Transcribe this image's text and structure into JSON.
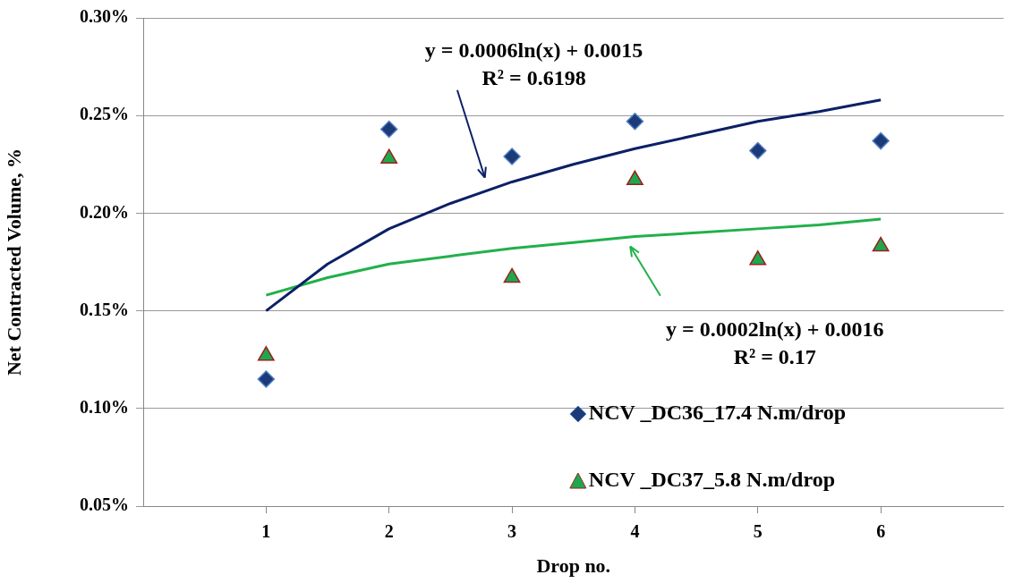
{
  "chart_data": {
    "type": "scatter",
    "xlabel": "Drop no.",
    "ylabel": "Net Contracted Volume, %",
    "x": [
      1,
      2,
      3,
      4,
      5,
      6
    ],
    "xlim": [
      0,
      7
    ],
    "xticks": [
      1,
      2,
      3,
      4,
      5,
      6
    ],
    "ylim": [
      0.05,
      0.3
    ],
    "yticks": [
      {
        "value": 0.05,
        "label": "0.05%"
      },
      {
        "value": 0.1,
        "label": "0.10%"
      },
      {
        "value": 0.15,
        "label": "0.15%"
      },
      {
        "value": 0.2,
        "label": "0.20%"
      },
      {
        "value": 0.25,
        "label": "0.25%"
      },
      {
        "value": 0.3,
        "label": "0.30%"
      }
    ],
    "grid": "y",
    "legend": "bottom right",
    "series": [
      {
        "name": "NCV _DC36_17.4 N.m/drop",
        "color": "#1b3a78",
        "marker": "diamond",
        "values": [
          0.115,
          0.243,
          0.229,
          0.247,
          0.232,
          0.237
        ]
      },
      {
        "name": "NCV _DC37_5.8 N.m/drop",
        "color": "#1ea84e",
        "marker": "triangle",
        "values": [
          0.127,
          0.228,
          0.167,
          0.217,
          0.176,
          0.183
        ]
      },
      {
        "type": "line",
        "color": "#0b2066",
        "marker": "none",
        "x": [
          1,
          1.5,
          2,
          2.5,
          3,
          3.5,
          4,
          4.5,
          5,
          5.5,
          6
        ],
        "values": [
          0.15,
          0.174,
          0.192,
          0.205,
          0.216,
          0.225,
          0.233,
          0.24,
          0.247,
          0.252,
          0.258
        ]
      },
      {
        "type": "line",
        "color": "#22b04b",
        "marker": "none",
        "x": [
          1,
          1.5,
          2,
          2.5,
          3,
          3.5,
          4,
          4.5,
          5,
          5.5,
          6
        ],
        "values": [
          0.158,
          0.167,
          0.174,
          0.178,
          0.182,
          0.185,
          0.188,
          0.19,
          0.192,
          0.194,
          0.197
        ]
      }
    ],
    "annotations": [
      "y = 0.0006ln(x) + 0.0015\nR² = 0.6198",
      "y = 0.0002ln(x) + 0.0016\nR² = 0.17"
    ]
  }
}
